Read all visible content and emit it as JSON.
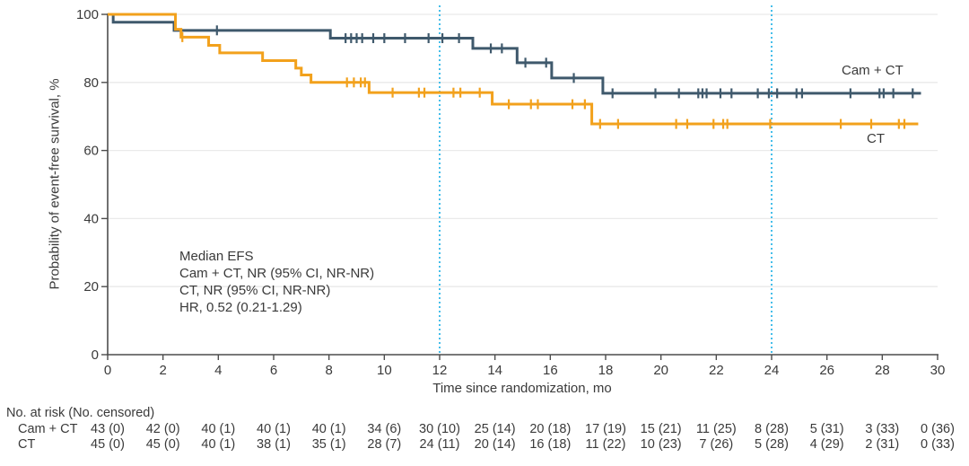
{
  "chart_data": {
    "type": "line",
    "subtype": "kaplan-meier-step-curves",
    "title": "",
    "xlabel": "Time since randomization, mo",
    "ylabel": "Probability of event-free survival, %",
    "xlim": [
      0,
      30
    ],
    "ylim": [
      0,
      100
    ],
    "x_ticks": [
      0,
      2,
      4,
      6,
      8,
      10,
      12,
      14,
      16,
      18,
      20,
      22,
      24,
      26,
      28,
      30
    ],
    "y_ticks": [
      0,
      20,
      40,
      60,
      80,
      100
    ],
    "grid": "horizontal-light",
    "reference_lines_x": [
      12,
      24
    ],
    "reference_line_color": "#45BEEA",
    "grid_color": "#eaeaea",
    "axis_color": "#4d4d4d",
    "text_color": "#3a3a3a",
    "legend_position": "labels-at-curve-end",
    "series": [
      {
        "name": "Cam + CT",
        "color": "#3F596C",
        "steps": [
          [
            0,
            100
          ],
          [
            0.2,
            97.7
          ],
          [
            2.4,
            95.3
          ],
          [
            8.05,
            93.0
          ],
          [
            13.2,
            90.0
          ],
          [
            14.8,
            85.8
          ],
          [
            16.05,
            81.3
          ],
          [
            17.9,
            76.8
          ]
        ],
        "end_time": 29.4,
        "censor_marks": [
          [
            3.95,
            95.3
          ],
          [
            8.6,
            93.0
          ],
          [
            8.8,
            93.0
          ],
          [
            9.0,
            93.0
          ],
          [
            9.2,
            93.0
          ],
          [
            9.6,
            93.0
          ],
          [
            10.0,
            93.0
          ],
          [
            10.75,
            93.0
          ],
          [
            11.6,
            93.0
          ],
          [
            12.1,
            93.0
          ],
          [
            12.7,
            93.0
          ],
          [
            13.85,
            90.0
          ],
          [
            14.25,
            90.0
          ],
          [
            15.1,
            85.8
          ],
          [
            15.85,
            85.8
          ],
          [
            16.85,
            81.3
          ],
          [
            18.25,
            76.8
          ],
          [
            19.8,
            76.8
          ],
          [
            20.65,
            76.8
          ],
          [
            21.35,
            76.8
          ],
          [
            21.5,
            76.8
          ],
          [
            21.65,
            76.8
          ],
          [
            22.15,
            76.8
          ],
          [
            22.55,
            76.8
          ],
          [
            23.5,
            76.8
          ],
          [
            23.9,
            76.8
          ],
          [
            24.2,
            76.8
          ],
          [
            24.9,
            76.8
          ],
          [
            25.1,
            76.8
          ],
          [
            26.85,
            76.8
          ],
          [
            27.9,
            76.8
          ],
          [
            28.05,
            76.8
          ],
          [
            28.4,
            76.8
          ],
          [
            29.1,
            76.8
          ]
        ]
      },
      {
        "name": "CT",
        "color": "#F2A11C",
        "steps": [
          [
            0,
            100
          ],
          [
            2.45,
            95.6
          ],
          [
            2.65,
            93.3
          ],
          [
            3.65,
            90.9
          ],
          [
            4.05,
            88.7
          ],
          [
            5.6,
            86.4
          ],
          [
            6.8,
            84.2
          ],
          [
            7.0,
            82.2
          ],
          [
            7.35,
            80.0
          ],
          [
            9.45,
            77.0
          ],
          [
            13.9,
            73.6
          ],
          [
            17.5,
            67.8
          ]
        ],
        "end_time": 29.3,
        "censor_marks": [
          [
            2.7,
            93.3
          ],
          [
            8.65,
            80.0
          ],
          [
            8.9,
            80.0
          ],
          [
            9.15,
            80.0
          ],
          [
            9.3,
            80.0
          ],
          [
            10.3,
            77.0
          ],
          [
            11.25,
            77.0
          ],
          [
            11.45,
            77.0
          ],
          [
            12.5,
            77.0
          ],
          [
            12.75,
            77.0
          ],
          [
            13.45,
            77.0
          ],
          [
            14.5,
            73.6
          ],
          [
            15.3,
            73.6
          ],
          [
            15.55,
            73.6
          ],
          [
            16.8,
            73.6
          ],
          [
            17.25,
            73.6
          ],
          [
            17.8,
            67.8
          ],
          [
            18.45,
            67.8
          ],
          [
            20.55,
            67.8
          ],
          [
            20.95,
            67.8
          ],
          [
            21.9,
            67.8
          ],
          [
            22.25,
            67.8
          ],
          [
            22.4,
            67.8
          ],
          [
            23.95,
            67.8
          ],
          [
            26.5,
            67.8
          ],
          [
            27.6,
            67.8
          ],
          [
            28.6,
            67.8
          ],
          [
            28.8,
            67.8
          ]
        ]
      }
    ],
    "curve_end_labels": {
      "cam_ct": "Cam + CT",
      "ct": "CT"
    },
    "annotation": {
      "lines": [
        "Median EFS",
        "Cam + CT, NR (95% CI, NR-NR)",
        "CT, NR (95% CI, NR-NR)",
        "HR, 0.52 (0.21-1.29)"
      ]
    },
    "risk_table": {
      "header": "No. at risk (No. censored)",
      "times": [
        0,
        2,
        4,
        6,
        8,
        10,
        12,
        14,
        16,
        18,
        20,
        22,
        24,
        26,
        28,
        30
      ],
      "rows": [
        {
          "label": "Cam + CT",
          "values": [
            "43 (0)",
            "42 (0)",
            "40 (1)",
            "40 (1)",
            "40 (1)",
            "34 (6)",
            "30 (10)",
            "25 (14)",
            "20 (18)",
            "17 (19)",
            "15 (21)",
            "11 (25)",
            "8 (28)",
            "5 (31)",
            "3 (33)",
            "0 (36)"
          ]
        },
        {
          "label": "CT",
          "values": [
            "45 (0)",
            "45 (0)",
            "40 (1)",
            "38 (1)",
            "35 (1)",
            "28 (7)",
            "24 (11)",
            "20 (14)",
            "16 (18)",
            "11 (22)",
            "10 (23)",
            "7 (26)",
            "5 (28)",
            "4 (29)",
            "2 (31)",
            "0 (33)"
          ]
        }
      ]
    }
  }
}
